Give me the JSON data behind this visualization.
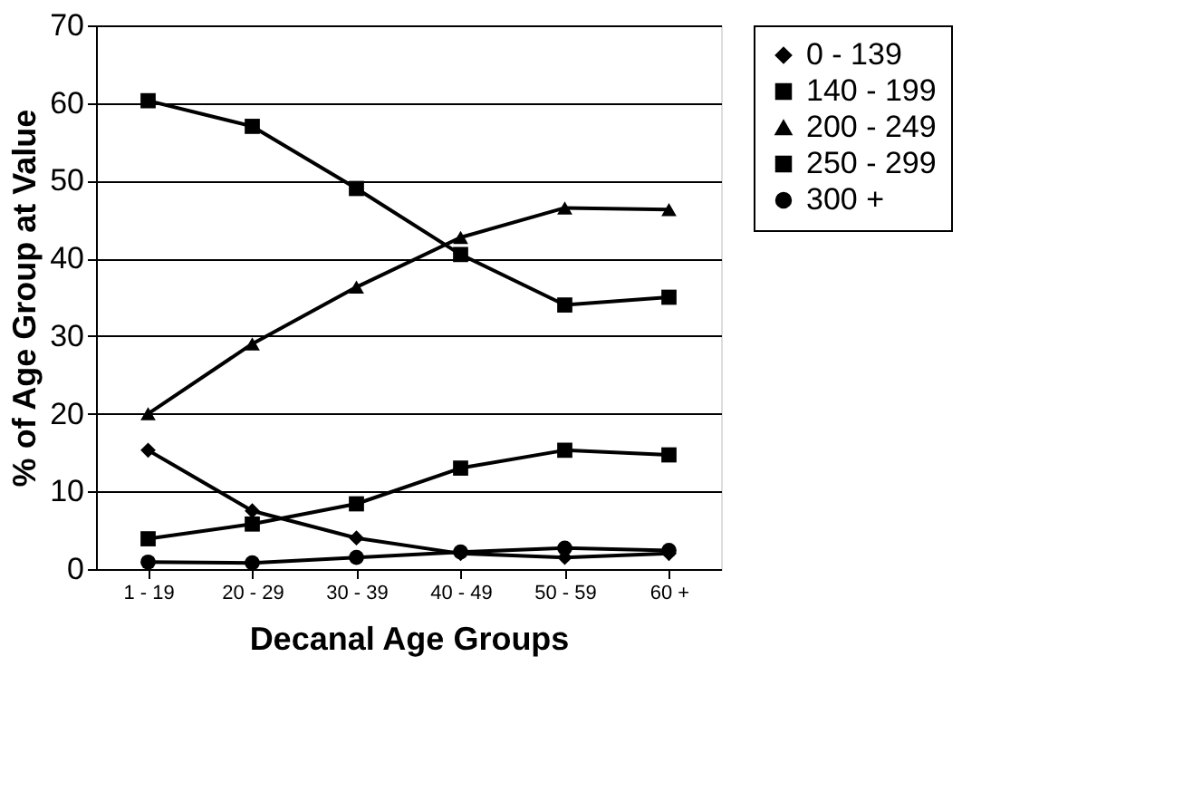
{
  "chart_data": {
    "type": "line",
    "xlabel": "Decanal Age Groups",
    "ylabel": "% of Age Group at Value",
    "categories": [
      "1 - 19",
      "20 - 29",
      "30 - 39",
      "40 - 49",
      "50 - 59",
      "60 +"
    ],
    "series": [
      {
        "name": "0 - 139",
        "color": "#000000",
        "marker": "diamond",
        "values": [
          15.3,
          7.5,
          4,
          2,
          1.5,
          2
        ]
      },
      {
        "name": "140 - 199",
        "color": "#000000",
        "marker": "square",
        "values": [
          60.3,
          57,
          49,
          40.5,
          34,
          35
        ]
      },
      {
        "name": "200 - 249",
        "color": "#000000",
        "marker": "triangle",
        "values": [
          20,
          29,
          36.3,
          42.7,
          46.5,
          46.3
        ]
      },
      {
        "name": "250 - 299",
        "color": "#000000",
        "marker": "square",
        "values": [
          3.9,
          5.8,
          8.4,
          13,
          15.3,
          14.7
        ]
      },
      {
        "name": "300 +",
        "color": "#000000",
        "marker": "circle",
        "values": [
          0.9,
          0.8,
          1.5,
          2.2,
          2.7,
          2.4
        ]
      }
    ],
    "ylim": [
      0,
      70
    ],
    "yticks": [
      0,
      10,
      20,
      30,
      40,
      50,
      60,
      70
    ],
    "grid": "y",
    "legend": "right"
  }
}
